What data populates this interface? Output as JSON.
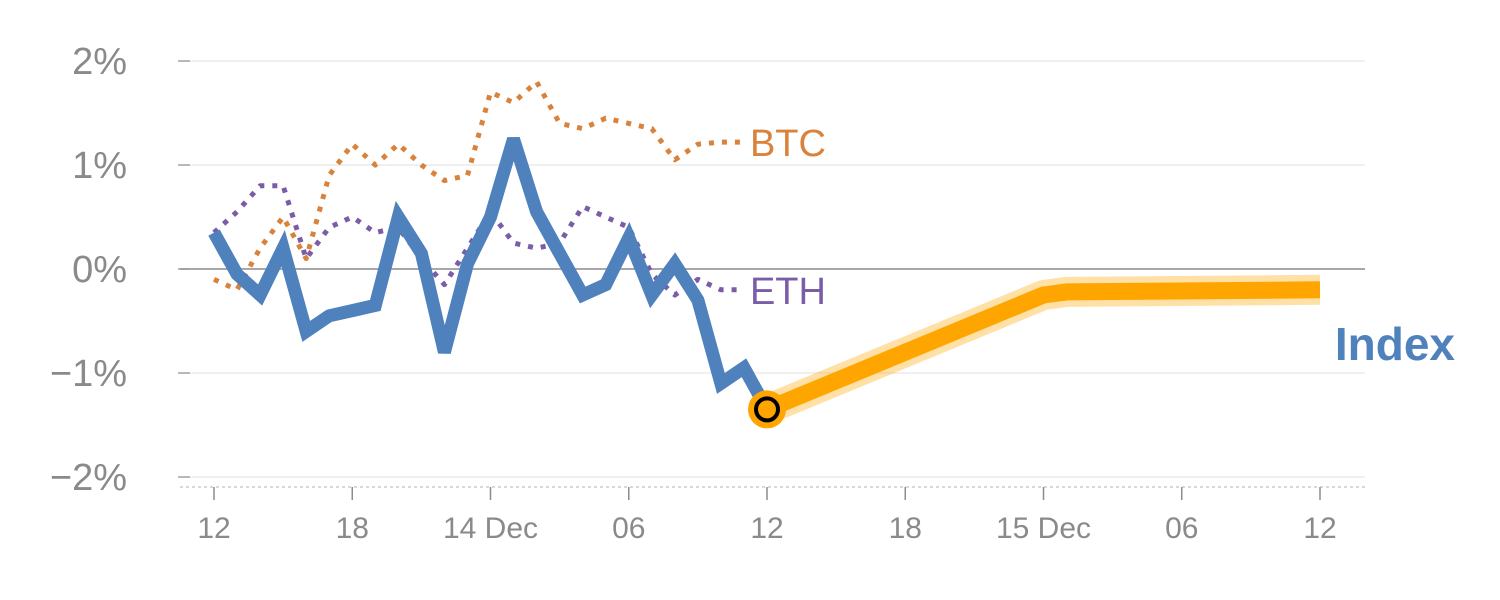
{
  "chart_data": {
    "type": "line",
    "x_tick_labels": [
      "12",
      "18",
      "14 Dec",
      "06",
      "12",
      "18",
      "15 Dec",
      "06",
      "12"
    ],
    "x_tick_hours": [
      0,
      6,
      12,
      18,
      24,
      30,
      36,
      42,
      48
    ],
    "y_tick_labels": [
      "2%",
      "1%",
      "0%",
      "−1%",
      "−2%"
    ],
    "y_tick_values": [
      2,
      1,
      0,
      -1,
      -2
    ],
    "ylim": [
      -2.1,
      2.1
    ],
    "xlim": [
      -1,
      50
    ],
    "grid": true,
    "series": [
      {
        "name": "BTC",
        "color": "#d9823b",
        "style": "dotted",
        "x": [
          0,
          1,
          2,
          3,
          4,
          5,
          6,
          7,
          8,
          9,
          10,
          11,
          12,
          13,
          14,
          15,
          16,
          17,
          18,
          19,
          20,
          21,
          22,
          23
        ],
        "y": [
          -0.1,
          -0.2,
          0.2,
          0.5,
          0.1,
          0.9,
          1.2,
          1.0,
          1.2,
          1.0,
          0.85,
          0.9,
          1.7,
          1.6,
          1.8,
          1.4,
          1.35,
          1.45,
          1.4,
          1.35,
          1.05,
          1.2,
          1.22,
          1.22
        ]
      },
      {
        "name": "ETH",
        "color": "#7b5ca6",
        "style": "dotted",
        "x": [
          0,
          1,
          2,
          3,
          4,
          5,
          6,
          7,
          8,
          9,
          10,
          11,
          12,
          13,
          14,
          15,
          16,
          17,
          18,
          19,
          20,
          21,
          22,
          23
        ],
        "y": [
          0.35,
          0.55,
          0.8,
          0.8,
          0.1,
          0.4,
          0.5,
          0.35,
          0.4,
          0.1,
          -0.15,
          0.2,
          0.55,
          0.25,
          0.2,
          0.25,
          0.6,
          0.5,
          0.4,
          -0.05,
          -0.25,
          -0.1,
          -0.2,
          -0.2
        ]
      },
      {
        "name": "Index",
        "color": "#4f81bd",
        "style": "solid",
        "x": [
          0,
          1,
          2,
          3,
          4,
          5,
          6,
          7,
          8,
          9,
          10,
          11,
          12,
          13,
          14,
          15,
          16,
          17,
          18,
          19,
          20,
          21,
          22,
          23,
          24
        ],
        "y": [
          0.35,
          -0.05,
          -0.25,
          0.2,
          -0.6,
          -0.45,
          -0.4,
          -0.35,
          0.5,
          0.15,
          -0.8,
          0.05,
          0.5,
          1.25,
          0.55,
          0.15,
          -0.25,
          -0.15,
          0.3,
          -0.25,
          0.05,
          -0.3,
          -1.1,
          -0.95,
          -1.35
        ]
      },
      {
        "name": "Index forecast",
        "color": "#ffa500",
        "style": "solid",
        "x": [
          24,
          36,
          37,
          48
        ],
        "y": [
          -1.35,
          -0.25,
          -0.22,
          -0.2
        ]
      }
    ],
    "labels": [
      {
        "text": "BTC",
        "series": "BTC"
      },
      {
        "text": "ETH",
        "series": "ETH"
      },
      {
        "text": "Index",
        "series": "Index"
      }
    ],
    "marker": {
      "x": 24,
      "y": -1.35
    }
  }
}
